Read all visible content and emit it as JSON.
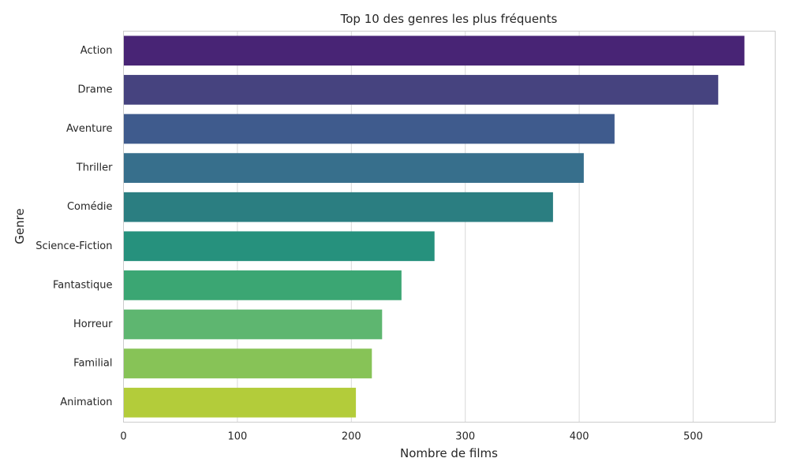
{
  "chart_data": {
    "type": "bar",
    "orientation": "horizontal",
    "title": "Top 10 des genres les plus fréquents",
    "xlabel": "Nombre de films",
    "ylabel": "Genre",
    "categories": [
      "Action",
      "Drame",
      "Aventure",
      "Thriller",
      "Comédie",
      "Science-Fiction",
      "Fantastique",
      "Horreur",
      "Familial",
      "Animation"
    ],
    "values": [
      545,
      522,
      431,
      404,
      377,
      273,
      244,
      227,
      218,
      204
    ],
    "xlim": [
      0,
      572
    ],
    "xticks": [
      0,
      100,
      200,
      300,
      400,
      500
    ],
    "grid": true,
    "colors": [
      "#482475",
      "#46437f",
      "#3f5b8d",
      "#376f8c",
      "#2b7e81",
      "#26917d",
      "#3ba673",
      "#5eb670",
      "#87c357",
      "#b3cc3a"
    ]
  }
}
